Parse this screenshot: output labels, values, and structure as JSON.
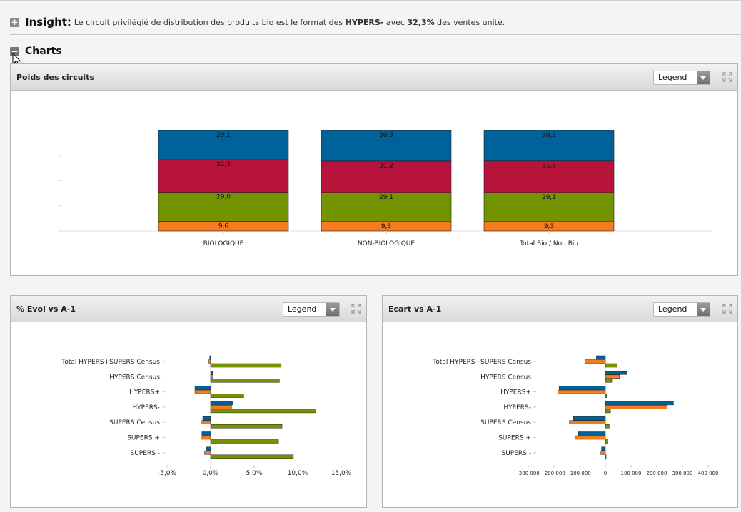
{
  "insight": {
    "label": "Insight:",
    "text_before": "Le circuit privilégié de distribution des produits bio est le format des",
    "highlight": "HYPERS-",
    "text_middle": "avec",
    "value": "32,3%",
    "text_after": "des ventes unité."
  },
  "charts_section": {
    "label": "Charts"
  },
  "colors": {
    "blue": "#00629b",
    "red": "#b8133a",
    "green": "#739400",
    "orange": "#f47b20"
  },
  "panels": {
    "poids": {
      "title": "Poids des circuits",
      "legend_label": "Legend"
    },
    "evol": {
      "title": "% Evol vs A-1",
      "legend_label": "Legend"
    },
    "ecart": {
      "title": "Ecart vs A-1",
      "legend_label": "Legend"
    }
  },
  "chart_data": [
    {
      "type": "bar",
      "stacked": true,
      "categories": [
        "BIOLOGIQUE",
        "NON-BIOLOGIQUE",
        "Total Bio / Non Bio"
      ],
      "series": [
        {
          "values": [
            9.6,
            9.3,
            9.3
          ],
          "color": "#f47b20"
        },
        {
          "values": [
            29.0,
            29.1,
            29.1
          ],
          "color": "#739400"
        },
        {
          "values": [
            32.3,
            31.2,
            31.3
          ],
          "color": "#b8133a"
        },
        {
          "values": [
            29.1,
            30.3,
            30.3
          ],
          "color": "#00629b"
        }
      ],
      "labels": [
        [
          "9,6",
          "9,3",
          "9,3"
        ],
        [
          "29,0",
          "29,1",
          "29,1"
        ],
        [
          "32,3",
          "31,2",
          "31,3"
        ],
        [
          "29,1",
          "30,3",
          "30,3"
        ]
      ],
      "ylim": [
        0,
        100
      ]
    },
    {
      "type": "bar",
      "orientation": "horizontal",
      "categories": [
        "Total HYPERS+SUPERS Census",
        "HYPERS Census",
        "HYPERS+",
        "HYPERS-",
        "SUPERS Census",
        "SUPERS +",
        "SUPERS -"
      ],
      "series": [
        {
          "color": "#00629b",
          "values": [
            -0.1,
            0.3,
            -1.8,
            2.6,
            -0.9,
            -1.0,
            -0.5
          ]
        },
        {
          "color": "#f47b20",
          "values": [
            -0.2,
            0.2,
            -1.8,
            2.4,
            -1.0,
            -1.1,
            -0.7
          ]
        },
        {
          "color": "#739400",
          "values": [
            8.1,
            7.9,
            3.8,
            12.1,
            8.2,
            7.8,
            9.5
          ]
        }
      ],
      "xlim": [
        -5,
        15
      ],
      "xticks": [
        -5,
        0,
        5,
        10,
        15
      ],
      "xtick_labels": [
        "-5,0%",
        "0,0%",
        "5,0%",
        "10,0%",
        "15,0%"
      ]
    },
    {
      "type": "bar",
      "orientation": "horizontal",
      "categories": [
        "Total HYPERS+SUPERS Census",
        "HYPERS Census",
        "HYPERS+",
        "HYPERS-",
        "SUPERS Census",
        "SUPERS +",
        "SUPERS -"
      ],
      "series": [
        {
          "color": "#00629b",
          "values": [
            -35000,
            85000,
            -180000,
            265000,
            -125000,
            -105000,
            -15000
          ]
        },
        {
          "color": "#f47b20",
          "values": [
            -80000,
            55000,
            -185000,
            240000,
            -140000,
            -115000,
            -20000
          ]
        },
        {
          "color": "#739400",
          "values": [
            45000,
            25000,
            5000,
            20000,
            15000,
            10000,
            3000
          ]
        }
      ],
      "xlim": [
        -300000,
        400000
      ],
      "xticks": [
        -300000,
        -200000,
        -100000,
        0,
        100000,
        200000,
        300000,
        400000
      ],
      "xtick_labels": [
        "-300 000",
        "-200 000",
        "-100 000",
        "0",
        "100 000",
        "200 000",
        "300 000",
        "400 000"
      ]
    }
  ]
}
